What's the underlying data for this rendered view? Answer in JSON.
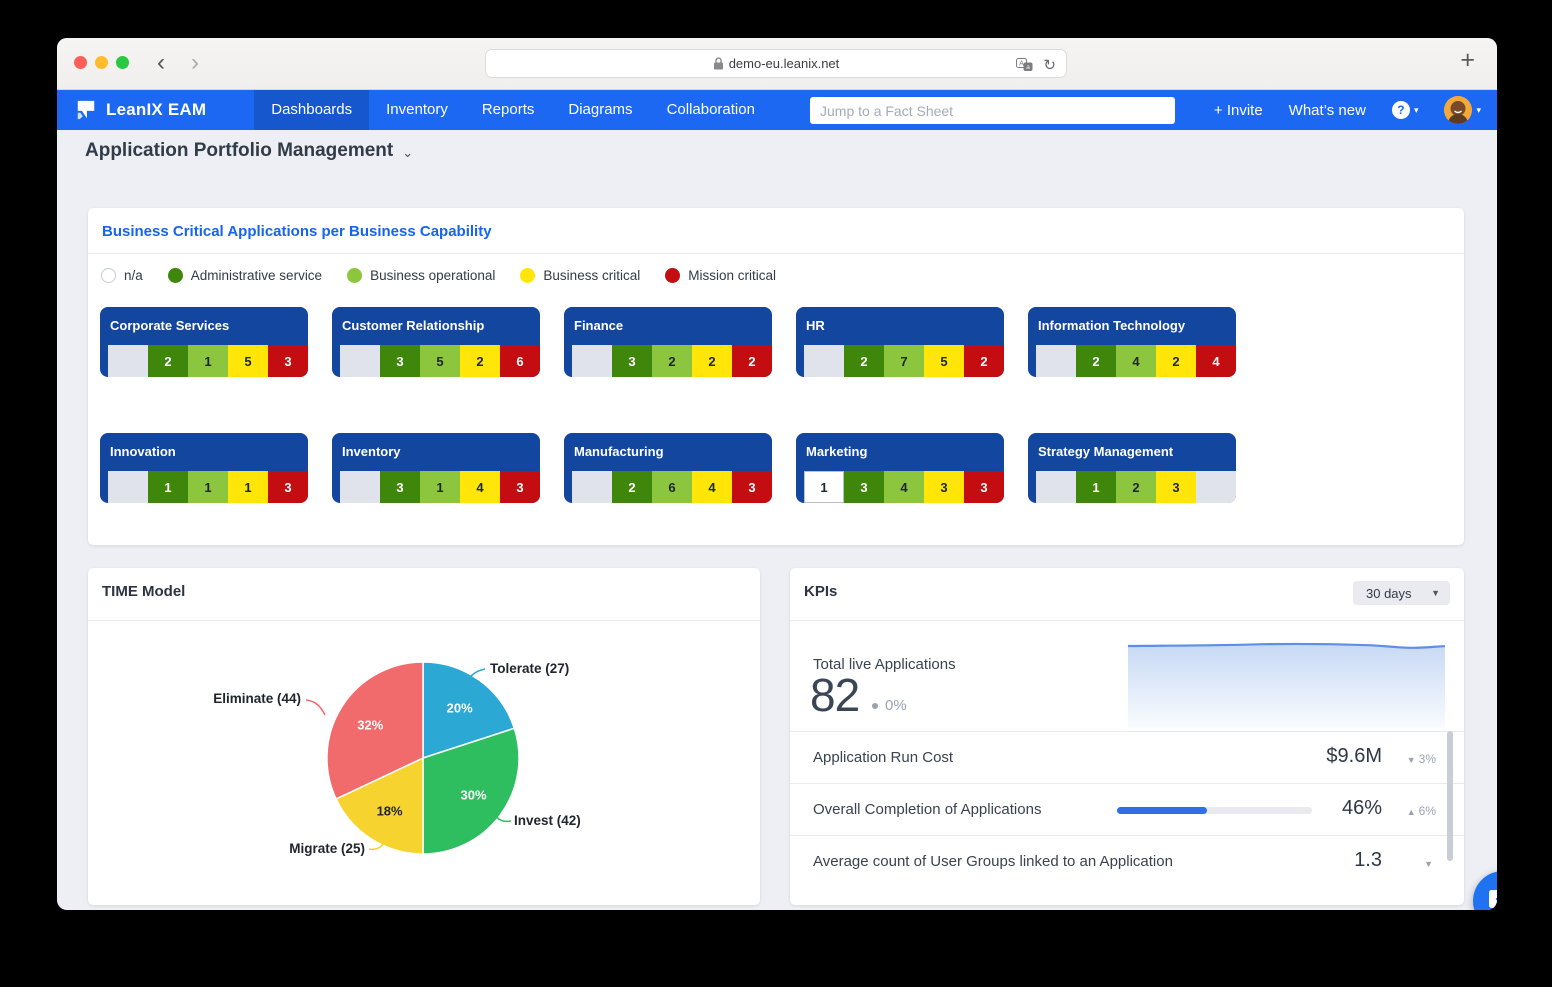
{
  "browser": {
    "url": "demo-eu.leanix.net",
    "back_label": "‹",
    "forward_label": "›",
    "reload_label": "↻",
    "new_tab_label": "+"
  },
  "navbar": {
    "brand": "LeanIX EAM",
    "items": [
      {
        "label": "Dashboards",
        "active": true
      },
      {
        "label": "Inventory",
        "active": false
      },
      {
        "label": "Reports",
        "active": false
      },
      {
        "label": "Diagrams",
        "active": false
      },
      {
        "label": "Collaboration",
        "active": false
      }
    ],
    "search_placeholder": "Jump to a Fact Sheet",
    "invite_label": "+ Invite",
    "whats_new_label": "What’s new",
    "help_label": "?"
  },
  "page": {
    "title": "Application Portfolio Management"
  },
  "capability_card": {
    "title": "Business Critical Applications per Business Capability",
    "legend": [
      {
        "label": "n/a",
        "color": "#FFFFFF",
        "outline": "#c3c9d6"
      },
      {
        "label": "Administrative service",
        "color": "#3F870B"
      },
      {
        "label": "Business operational",
        "color": "#8CC63F"
      },
      {
        "label": "Business critical",
        "color": "#FFE608"
      },
      {
        "label": "Mission critical",
        "color": "#C40D10"
      }
    ],
    "tiles": [
      {
        "name": "Corporate Services",
        "values": [
          0,
          2,
          1,
          5,
          3
        ]
      },
      {
        "name": "Customer Relationship",
        "values": [
          0,
          3,
          5,
          2,
          6
        ]
      },
      {
        "name": "Finance",
        "values": [
          0,
          3,
          2,
          2,
          2
        ]
      },
      {
        "name": "HR",
        "values": [
          0,
          2,
          7,
          5,
          2
        ]
      },
      {
        "name": "Information Technology",
        "values": [
          0,
          2,
          4,
          2,
          4
        ]
      },
      {
        "name": "Innovation",
        "values": [
          0,
          1,
          1,
          1,
          3
        ]
      },
      {
        "name": "Inventory",
        "values": [
          0,
          3,
          1,
          4,
          3
        ]
      },
      {
        "name": "Manufacturing",
        "values": [
          0,
          2,
          6,
          4,
          3
        ]
      },
      {
        "name": "Marketing",
        "values": [
          1,
          3,
          4,
          3,
          3
        ]
      },
      {
        "name": "Strategy Management",
        "values": [
          0,
          1,
          2,
          3,
          0
        ]
      }
    ]
  },
  "time_model": {
    "title": "TIME Model",
    "slices": [
      {
        "name": "Tolerate",
        "count": 27,
        "pct": 20,
        "color": "#2BA8D4",
        "pct_color": "#ffffff",
        "ext_label": "Tolerate (27)"
      },
      {
        "name": "Invest",
        "count": 42,
        "pct": 30,
        "color": "#2EBE5F",
        "pct_color": "#ffffff",
        "ext_label": "Invest (42)"
      },
      {
        "name": "Migrate",
        "count": 25,
        "pct": 18,
        "color": "#F6D32E",
        "pct_color": "#20262e",
        "ext_label": "Migrate (25)"
      },
      {
        "name": "Eliminate",
        "count": 44,
        "pct": 32,
        "color": "#F16B6D",
        "pct_color": "#ffffff",
        "ext_label": "Eliminate (44)"
      }
    ]
  },
  "kpis": {
    "title": "KPIs",
    "period": "30 days",
    "total": {
      "label": "Total live Applications",
      "value": "82",
      "change": "0%"
    },
    "rows": [
      {
        "label": "Application Run Cost",
        "value": "$9.6M",
        "change": "3%",
        "direction": "down",
        "progress": null
      },
      {
        "label": "Overall Completion of Applications",
        "value": "46%",
        "change": "6%",
        "direction": "up",
        "progress": 46
      },
      {
        "label": "Average count of User Groups linked to an Application",
        "value": "1.3",
        "change": "",
        "direction": "down",
        "progress": null
      }
    ]
  },
  "colors": {
    "navbar": "#1c68f2",
    "navbar_active": "#1757ce",
    "tile_header": "#13479f",
    "empty_segment": "#e0e3ec",
    "card_title_blue": "#1765ee",
    "progress_fill": "#2e6fe3",
    "chat_bubble": "#1f73f1"
  },
  "chart_data": [
    {
      "type": "bar",
      "subtype": "capability-criticality-tiles",
      "title": "Business Critical Applications per Business Capability",
      "categories": [
        "n/a",
        "Administrative service",
        "Business operational",
        "Business critical",
        "Mission critical"
      ],
      "series": [
        {
          "name": "Corporate Services",
          "values": [
            0,
            2,
            1,
            5,
            3
          ]
        },
        {
          "name": "Customer Relationship",
          "values": [
            0,
            3,
            5,
            2,
            6
          ]
        },
        {
          "name": "Finance",
          "values": [
            0,
            3,
            2,
            2,
            2
          ]
        },
        {
          "name": "HR",
          "values": [
            0,
            2,
            7,
            5,
            2
          ]
        },
        {
          "name": "Information Technology",
          "values": [
            0,
            2,
            4,
            2,
            4
          ]
        },
        {
          "name": "Innovation",
          "values": [
            0,
            1,
            1,
            1,
            3
          ]
        },
        {
          "name": "Inventory",
          "values": [
            0,
            3,
            1,
            4,
            3
          ]
        },
        {
          "name": "Manufacturing",
          "values": [
            0,
            2,
            6,
            4,
            3
          ]
        },
        {
          "name": "Marketing",
          "values": [
            1,
            3,
            4,
            3,
            3
          ]
        },
        {
          "name": "Strategy Management",
          "values": [
            0,
            1,
            2,
            3,
            0
          ]
        }
      ],
      "legend_position": "top"
    },
    {
      "type": "pie",
      "title": "TIME Model",
      "labels": [
        "Tolerate",
        "Invest",
        "Migrate",
        "Eliminate"
      ],
      "counts": [
        27,
        42,
        25,
        44
      ],
      "percents": [
        20,
        30,
        18,
        32
      ],
      "colors": [
        "#2BA8D4",
        "#2EBE5F",
        "#F6D32E",
        "#F16B6D"
      ],
      "start_angle_deg": 0,
      "direction": "clockwise"
    },
    {
      "type": "area",
      "title": "Total live Applications (30 days)",
      "current_value": 82,
      "change": "0%",
      "shape": "flat trend around 82 with slight mid rise and small dip near end",
      "axes_visible": false
    }
  ]
}
